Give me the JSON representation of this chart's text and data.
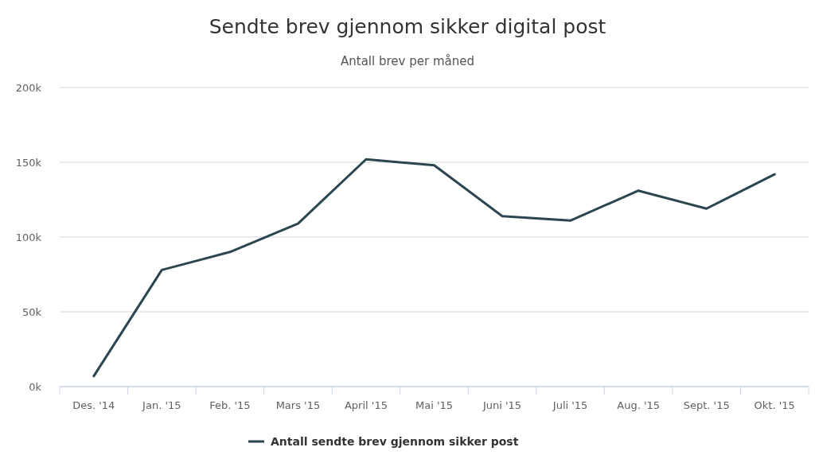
{
  "chart_data": {
    "type": "line",
    "title": "Sendte brev gjennom sikker digital post",
    "subtitle": "Antall brev per måned",
    "categories": [
      "Des. '14",
      "Jan. '15",
      "Feb. '15",
      "Mars '15",
      "April '15",
      "Mai '15",
      "Juni '15",
      "Juli '15",
      "Aug. '15",
      "Sept. '15",
      "Okt. '15"
    ],
    "series": [
      {
        "name": "Antall sendte brev gjennom sikker post",
        "color": "#2b4650",
        "values": [
          7000,
          78000,
          90000,
          109000,
          152000,
          148000,
          114000,
          111000,
          131000,
          119000,
          142000
        ]
      }
    ],
    "ylim": [
      0,
      200000
    ],
    "yticks": [
      {
        "value": 0,
        "label": "0k"
      },
      {
        "value": 50000,
        "label": "50k"
      },
      {
        "value": 100000,
        "label": "100k"
      },
      {
        "value": 150000,
        "label": "150k"
      },
      {
        "value": 200000,
        "label": "200k"
      }
    ],
    "grid": "y",
    "legend": "bottom",
    "marker": "none",
    "line_style": "solid"
  }
}
